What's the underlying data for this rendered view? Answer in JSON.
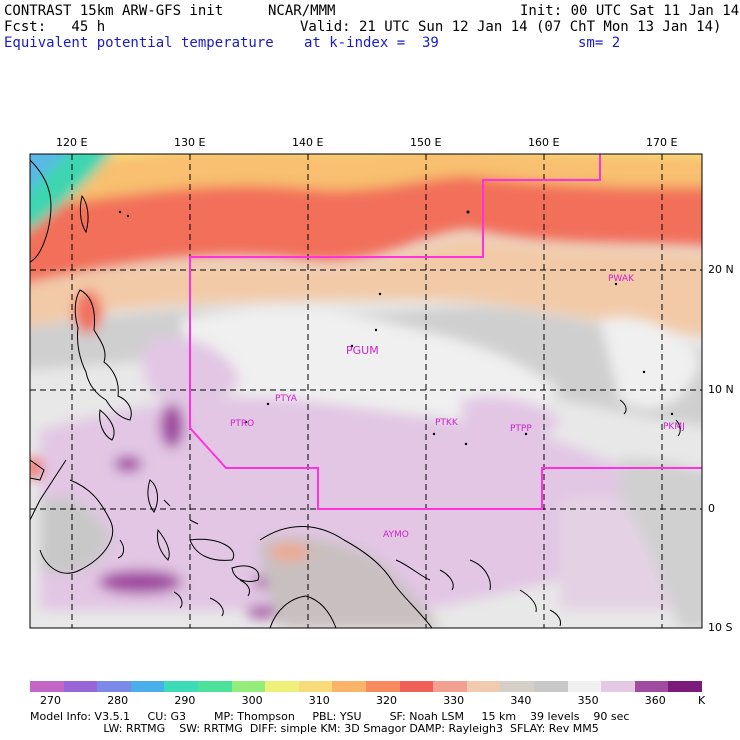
{
  "header": {
    "line1_left": "CONTRAST 15km ARW-GFS init",
    "line1_mid": "NCAR/MMM",
    "line1_right": "Init: 00 UTC Sat 11 Jan 14",
    "line2_left": "Fcst:   45 h",
    "line2_right": "Valid: 21 UTC Sun 12 Jan 14 (07 ChT Mon 13 Jan 14)",
    "line3_left": "Equivalent potential temperature",
    "line3_mid": "at k-index =  39",
    "line3_right": "sm= 2"
  },
  "map": {
    "lon_labels": [
      "120 E",
      "130 E",
      "140 E",
      "150 E",
      "160 E",
      "170 E"
    ],
    "lon_values": [
      120,
      130,
      140,
      150,
      160,
      170
    ],
    "lat_labels": [
      "20 N",
      "10 N",
      "0",
      "10 S"
    ],
    "lat_values": [
      20,
      10,
      0,
      -10
    ],
    "stations": [
      "PWAK",
      "PGUM",
      "PTYA",
      "PTRO",
      "PTKK",
      "PTPP",
      "PKMJ",
      "AYMO"
    ],
    "colors": {
      "boundary": "#ff33dd",
      "station_text": "#cc22cc"
    }
  },
  "colorbar": {
    "labels": [
      "270",
      "280",
      "290",
      "300",
      "310",
      "320",
      "330",
      "340",
      "350",
      "360"
    ],
    "unit": "K",
    "colors": [
      "#c266c8",
      "#9966d8",
      "#7a8ae6",
      "#4aaeea",
      "#3cdcb8",
      "#4de29c",
      "#94ec7a",
      "#eef07a",
      "#f8dc7a",
      "#fab46a",
      "#f88a60",
      "#f06058",
      "#f2a090",
      "#f2cab0",
      "#d6cfc8",
      "#c8c8c8",
      "#f0f0f0",
      "#e4c8e4",
      "#a04aa0",
      "#7a1a7a"
    ]
  },
  "model_info": {
    "line1": "Model Info: V3.5.1     CU: G3        MP: Thompson     PBL: YSU        SF: Noah LSM     15 km    39 levels    90 sec",
    "line2": "                     LW: RRTMG    SW: RRTMG  DIFF: simple KM: 3D Smagor DAMP: Rayleigh3  SFLAY: Rev MM5"
  }
}
